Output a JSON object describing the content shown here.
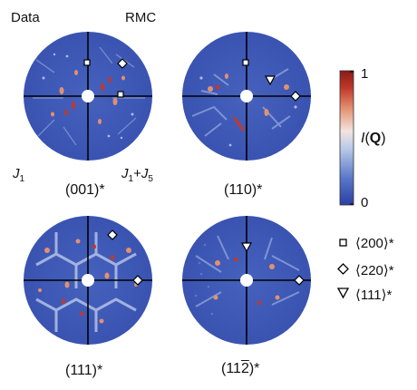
{
  "header": {
    "left_label": "Data",
    "right_label": "RMC"
  },
  "model_labels": {
    "j1_italic": "J",
    "j1_sub": "1",
    "j1j5_italic_a": "J",
    "j1j5_sub_a": "1",
    "j1j5_plus": "+",
    "j1j5_italic_b": "J",
    "j1j5_sub_b": "5"
  },
  "panels": [
    {
      "id": "001",
      "caption": "(001)*",
      "markers": [
        "square",
        "square",
        "diamond"
      ]
    },
    {
      "id": "110",
      "caption": "(110)*",
      "markers": [
        "square",
        "triangle",
        "diamond"
      ]
    },
    {
      "id": "111",
      "caption": "(111)*",
      "markers": [
        "diamond",
        "diamond"
      ]
    },
    {
      "id": "112",
      "caption_pre": "(11",
      "caption_bar": "2",
      "caption_post": ")*",
      "markers": [
        "triangle",
        "diamond"
      ]
    }
  ],
  "colorbar": {
    "max_label": "1",
    "min_label": "0",
    "axis_label_italic": "I",
    "axis_label_open": "(",
    "axis_label_bold": "Q",
    "axis_label_close": ")",
    "colors": [
      "#2b3fa4",
      "#5a78c8",
      "#b9c9e8",
      "#f2e4e0",
      "#e3906f",
      "#c0392b",
      "#8a1a16"
    ]
  },
  "legend": [
    {
      "symbol": "square",
      "label": "⟨200⟩*"
    },
    {
      "symbol": "diamond",
      "label": "⟨220⟩*"
    },
    {
      "symbol": "triangle",
      "label": "⟨111⟩*"
    }
  ],
  "colors": {
    "disc_base": "#3c56b4",
    "hot": "#d9572f"
  }
}
